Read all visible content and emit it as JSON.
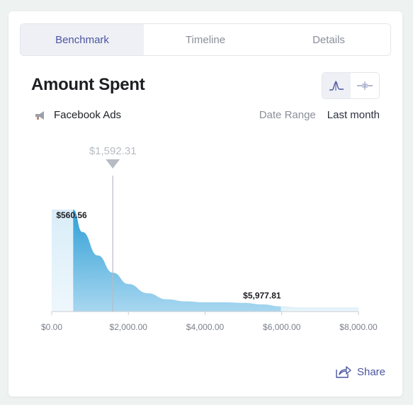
{
  "tabs": [
    {
      "label": "Benchmark",
      "active": true
    },
    {
      "label": "Timeline",
      "active": false
    },
    {
      "label": "Details",
      "active": false
    }
  ],
  "title": "Amount Spent",
  "view_toggle": {
    "selected": "distribution",
    "icons": [
      "bell-curve-icon",
      "range-icon"
    ]
  },
  "source": {
    "icon": "megaphone-icon",
    "label": "Facebook Ads"
  },
  "date_range": {
    "label": "Date Range",
    "value": "Last month"
  },
  "marker": {
    "label": "$1,592.31",
    "value": 1592.31
  },
  "share_label": "Share",
  "colors": {
    "accent": "#4b55a0",
    "area_dark": "#2f9fd6",
    "area_light": "#d9edf8",
    "marker": "#b7bcc3"
  },
  "chart_data": {
    "type": "area",
    "x_ticks": [
      "$0.00",
      "$2,000.00",
      "$4,000.00",
      "$6,000.00",
      "$8,000.00"
    ],
    "xlim": [
      0,
      8000
    ],
    "highlight_range": {
      "low": 560.56,
      "high": 5977.81,
      "low_label": "$560.56",
      "high_label": "$5,977.81"
    },
    "marker_value": 1592.31,
    "distribution": {
      "x": [
        0,
        560.56,
        800,
        1200,
        1600,
        2000,
        2500,
        3000,
        3500,
        4000,
        4500,
        5000,
        5500,
        5977.81,
        6500,
        7000,
        7500,
        8000
      ],
      "y": [
        1.0,
        1.0,
        0.78,
        0.55,
        0.38,
        0.27,
        0.18,
        0.12,
        0.1,
        0.09,
        0.09,
        0.085,
        0.07,
        0.05,
        0.04,
        0.04,
        0.04,
        0.04
      ]
    }
  }
}
